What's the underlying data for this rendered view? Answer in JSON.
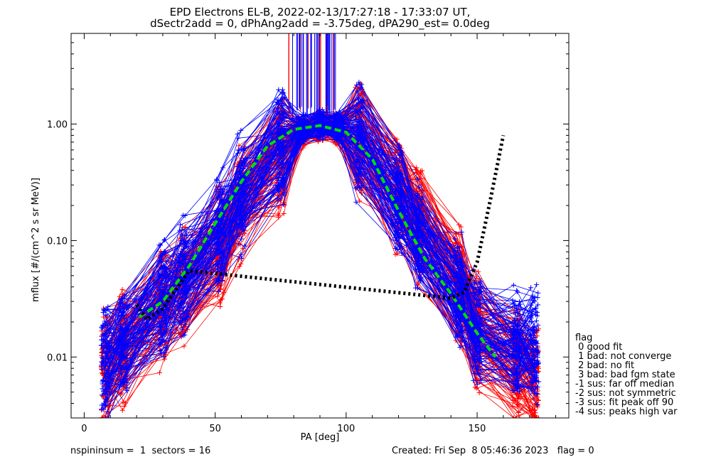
{
  "header": {
    "title_line1": "EPD Electrons EL-B, 2022-02-13/17:27:18 - 17:33:07 UT,",
    "title_line2": "dSectr2add = 0, dPhAng2add = -3.75deg, dPA290_est=   0.0deg"
  },
  "footer": {
    "left": "nspininsum =  1  sectors = 16",
    "right": "Created: Fri Sep  8 05:46:36 2023   flag = 0"
  },
  "legend": {
    "title": "flag",
    "items": [
      " 0 good fit",
      " 1 bad: not converge",
      " 2 bad: no fit",
      " 3 bad: bad fgm state",
      "-1 sus: far off median",
      "-2 sus: not symmetric",
      "-3 sus: fit peak off 90",
      "-4 sus: peaks high var"
    ]
  },
  "colors": {
    "red_series": "#ff0000",
    "blue_series": "#0000ff",
    "green_fit": "#00dd00",
    "black_fit": "#000000"
  },
  "chart_data": {
    "type": "line",
    "xlabel": "PA [deg]",
    "ylabel": "mflux [#/(cm^2 s sr MeV)]",
    "xlim": [
      -5,
      185
    ],
    "ylim": [
      0.003,
      6.0
    ],
    "yscale": "log",
    "xticks": [
      0,
      50,
      100,
      150
    ],
    "yticks": [
      0.01,
      0.1,
      1.0
    ],
    "ytick_labels": [
      "0.01",
      "0.10",
      "1.00"
    ],
    "pa_grid": [
      8,
      15,
      30,
      38,
      52,
      60,
      75,
      83,
      90,
      97,
      105,
      120,
      128,
      143,
      150,
      165,
      172
    ],
    "series": [
      {
        "color": "red",
        "count": 110,
        "median": [
          0.008,
          0.012,
          0.025,
          0.04,
          0.09,
          0.2,
          0.55,
          0.85,
          0.95,
          0.9,
          0.7,
          0.25,
          0.13,
          0.04,
          0.016,
          0.008,
          0.006
        ]
      },
      {
        "color": "blue",
        "count": 110,
        "median": [
          0.009,
          0.014,
          0.03,
          0.05,
          0.12,
          0.25,
          0.65,
          0.9,
          1.0,
          0.95,
          0.75,
          0.22,
          0.11,
          0.035,
          0.017,
          0.012,
          0.012
        ]
      },
      {
        "color": "green",
        "style": "dashed",
        "x": [
          21,
          30,
          40,
          50,
          60,
          70,
          80,
          90,
          100,
          110,
          120,
          130,
          140,
          150,
          157
        ],
        "y": [
          0.022,
          0.03,
          0.06,
          0.14,
          0.32,
          0.65,
          0.9,
          0.97,
          0.85,
          0.5,
          0.18,
          0.07,
          0.035,
          0.016,
          0.01
        ]
      },
      {
        "color": "black",
        "style": "dotted",
        "x": [
          20,
          24,
          30,
          40,
          140,
          145,
          150,
          155,
          160
        ],
        "y": [
          0.028,
          0.021,
          0.026,
          0.055,
          0.032,
          0.036,
          0.065,
          0.22,
          0.8
        ]
      }
    ],
    "vertical_spikes": {
      "x_range": [
        78,
        96
      ],
      "y_from": 1.15,
      "colors": [
        "red",
        "blue"
      ]
    }
  }
}
